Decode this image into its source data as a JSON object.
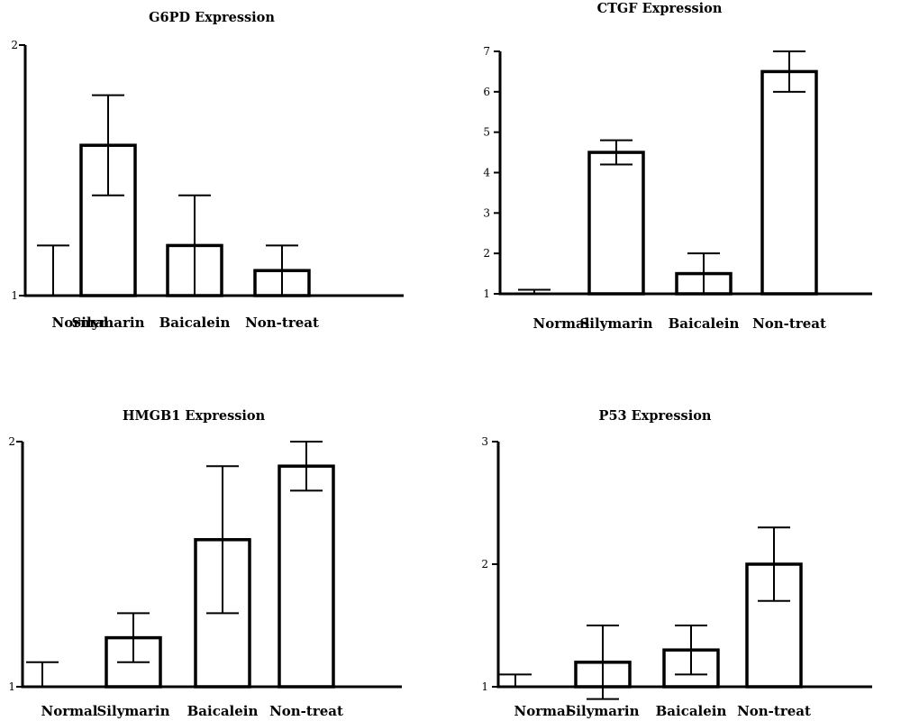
{
  "chart_data": [
    {
      "type": "bar",
      "title": "G6PD Expression",
      "categories": [
        "Normal",
        "Silymarin",
        "Baicalein",
        "Non-treat"
      ],
      "values": [
        1.0,
        1.6,
        1.2,
        1.1
      ],
      "error": [
        0.2,
        0.2,
        0.2,
        0.1
      ],
      "ylim": [
        1,
        2
      ],
      "yticks": [
        1,
        2
      ],
      "grid": false
    },
    {
      "type": "bar",
      "title": "CTGF Expression",
      "categories": [
        "Normal",
        "Silymarin",
        "Baicalein",
        "Non-treat"
      ],
      "values": [
        1.0,
        4.5,
        1.5,
        6.5
      ],
      "error": [
        0.1,
        0.3,
        0.5,
        0.5
      ],
      "ylim": [
        1,
        7
      ],
      "yticks": [
        1,
        2,
        3,
        4,
        5,
        6,
        7
      ],
      "grid": false
    },
    {
      "type": "bar",
      "title": "HMGB1 Expression",
      "categories": [
        "Normal",
        "Silymarin",
        "Baicalein",
        "Non-treat"
      ],
      "values": [
        1.0,
        1.2,
        1.6,
        1.9
      ],
      "error": [
        0.1,
        0.1,
        0.3,
        0.1
      ],
      "ylim": [
        1,
        2
      ],
      "yticks": [
        1,
        2
      ],
      "grid": false
    },
    {
      "type": "bar",
      "title": "P53 Expression",
      "categories": [
        "Normal",
        "Silymarin",
        "Baicalein",
        "Non-treat"
      ],
      "values": [
        1.0,
        1.2,
        1.3,
        2.0
      ],
      "error": [
        0.1,
        0.3,
        0.2,
        0.3
      ],
      "ylim": [
        1,
        3
      ],
      "yticks": [
        1,
        2,
        3
      ],
      "grid": false
    }
  ]
}
